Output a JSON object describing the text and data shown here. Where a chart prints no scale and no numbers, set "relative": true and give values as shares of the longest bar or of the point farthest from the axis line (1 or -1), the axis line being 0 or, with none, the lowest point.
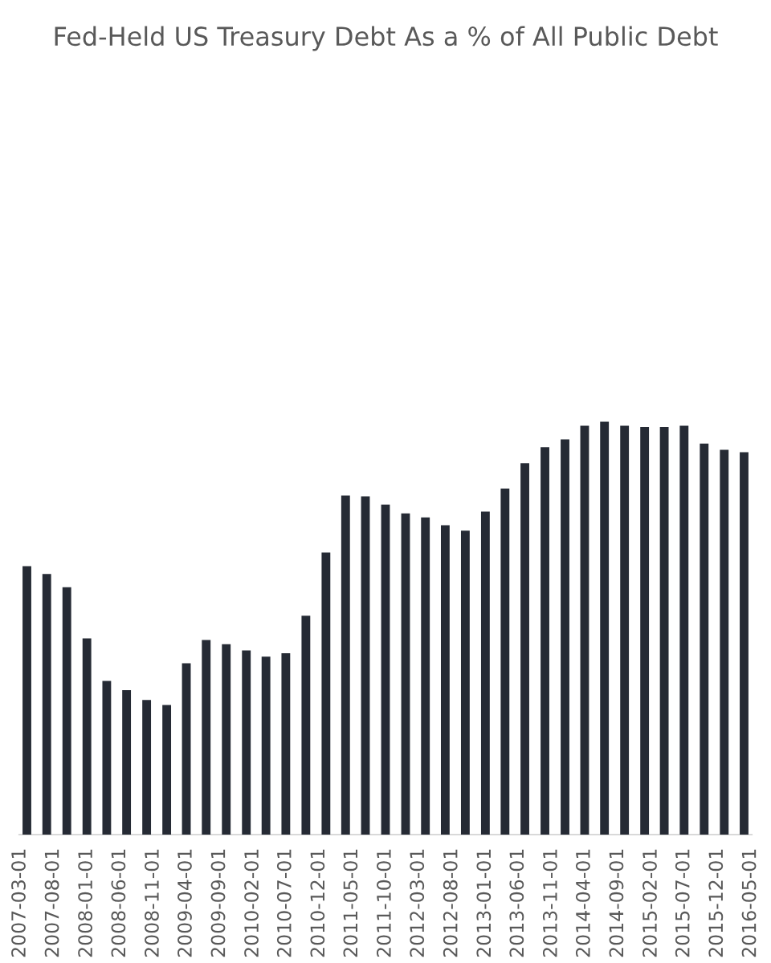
{
  "chart_data": {
    "type": "bar",
    "title": "Fed-Held US Treasury Debt As a % of All Public Debt",
    "relative": true,
    "color": "#252a34",
    "x": [
      "2007-04-01",
      "2007-07-01",
      "2007-10-01",
      "2008-01-01",
      "2008-04-01",
      "2008-07-01",
      "2008-10-01",
      "2009-01-01",
      "2009-04-01",
      "2009-07-01",
      "2009-10-01",
      "2010-01-01",
      "2010-04-01",
      "2010-07-01",
      "2010-10-01",
      "2011-01-01",
      "2011-04-01",
      "2011-07-01",
      "2011-10-01",
      "2012-01-01",
      "2012-04-01",
      "2012-07-01",
      "2012-10-01",
      "2013-01-01",
      "2013-04-01",
      "2013-07-01",
      "2013-10-01",
      "2014-01-01",
      "2014-04-01",
      "2014-07-01",
      "2014-10-01",
      "2015-01-01",
      "2015-04-01",
      "2015-07-01",
      "2015-10-01",
      "2016-01-01",
      "2016-04-01"
    ],
    "values": [
      0.65,
      0.631,
      0.599,
      0.475,
      0.372,
      0.35,
      0.326,
      0.314,
      0.415,
      0.471,
      0.461,
      0.446,
      0.431,
      0.439,
      0.53,
      0.683,
      0.821,
      0.819,
      0.799,
      0.778,
      0.768,
      0.749,
      0.736,
      0.782,
      0.838,
      0.899,
      0.938,
      0.957,
      0.99,
      1,
      0.99,
      0.987,
      0.987,
      0.99,
      0.947,
      0.932,
      0.926
    ],
    "xlim": [
      "2007-02-25",
      "2016-05-06"
    ],
    "xticks": [
      "2007-03-01",
      "2007-08-01",
      "2008-01-01",
      "2008-06-01",
      "2008-11-01",
      "2009-04-01",
      "2009-09-01",
      "2010-02-01",
      "2010-07-01",
      "2010-12-01",
      "2011-05-01",
      "2011-10-01",
      "2012-03-01",
      "2012-08-01",
      "2013-01-01",
      "2013-06-01",
      "2013-11-01",
      "2014-04-01",
      "2014-09-01",
      "2015-02-01",
      "2015-07-01",
      "2015-12-01",
      "2016-05-01"
    ]
  }
}
